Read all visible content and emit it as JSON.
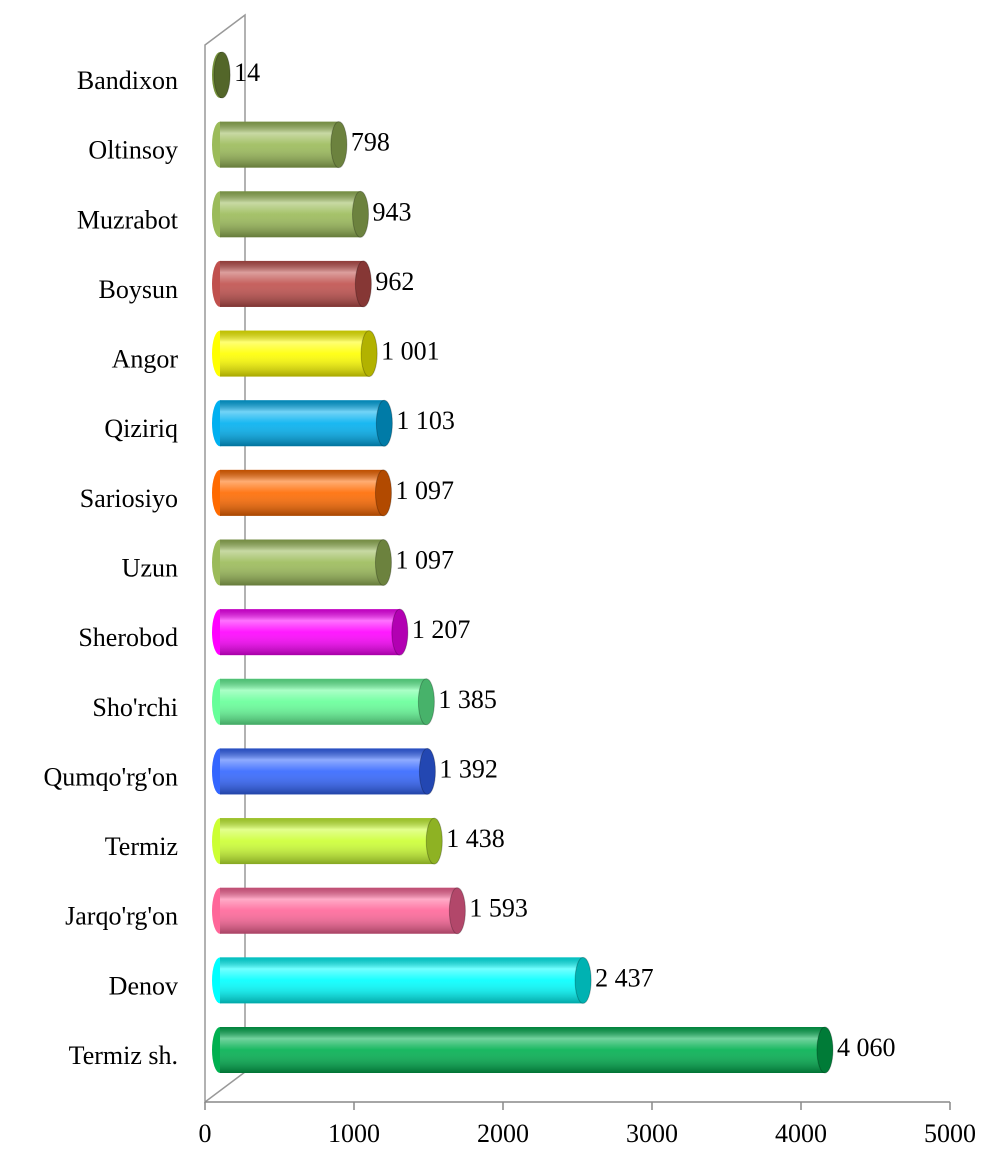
{
  "chart_data": {
    "type": "bar",
    "orientation": "horizontal",
    "categories": [
      "Bandixon",
      "Oltinsoy",
      "Muzrabot",
      "Boysun",
      "Angor",
      "Qiziriq",
      "Sariosiyo",
      "Uzun",
      "Sherobod",
      "Sho'rchi",
      "Qumqo'rg'on",
      "Termiz",
      "Jarqo'rg'on",
      "Denov",
      "Termiz sh."
    ],
    "values": [
      14,
      798,
      943,
      962,
      1001,
      1103,
      1097,
      1097,
      1207,
      1385,
      1392,
      1438,
      1593,
      2437,
      4060
    ],
    "value_labels": [
      "14",
      "798",
      "943",
      "962",
      "1 001",
      "1 103",
      "1 097",
      "1 097",
      "1 207",
      "1 385",
      "1 392",
      "1 438",
      "1 593",
      "2 437",
      "4 060"
    ],
    "colors": [
      "#77933c",
      "#9bbb59",
      "#9bbb59",
      "#c0504d",
      "#ffff00",
      "#00b0f0",
      "#ff6a00",
      "#9bbb59",
      "#ff00ff",
      "#66ff99",
      "#3366ff",
      "#ccff33",
      "#ff6699",
      "#00ffff",
      "#00b050"
    ],
    "xlim": [
      0,
      5000
    ],
    "xticks": [
      0,
      1000,
      2000,
      3000,
      4000,
      5000
    ],
    "grid": false
  }
}
